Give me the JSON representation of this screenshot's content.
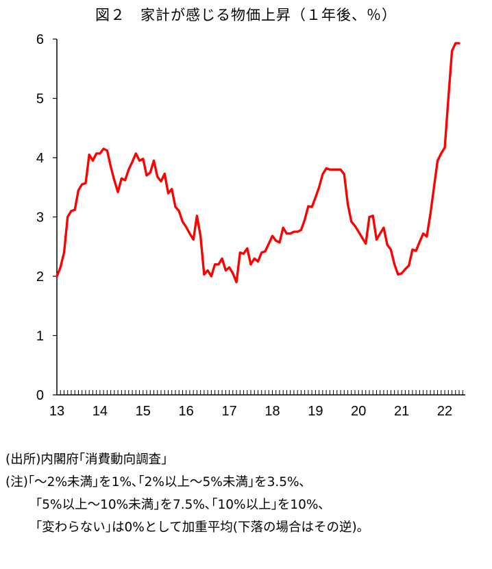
{
  "chart_data": {
    "type": "line",
    "title": "図２　家計が感じる物価上昇（１年後、％）",
    "xlabel": "",
    "ylabel": "",
    "ylim": [
      0,
      6
    ],
    "y_ticks": [
      "0",
      "1",
      "2",
      "3",
      "4",
      "5",
      "6"
    ],
    "x_tick_labels": [
      "13",
      "14",
      "15",
      "16",
      "17",
      "18",
      "19",
      "20",
      "21",
      "22"
    ],
    "x_tick_years": [
      2013,
      2014,
      2015,
      2016,
      2017,
      2018,
      2019,
      2020,
      2021,
      2022
    ],
    "x_range": [
      2013,
      2022.333
    ],
    "grid": false,
    "legend": "none",
    "series": [
      {
        "name": "家計が感じる物価上昇（１年後）",
        "color": "#ff0000",
        "x": [
          2013.0,
          2013.083,
          2013.167,
          2013.25,
          2013.333,
          2013.417,
          2013.5,
          2013.583,
          2013.667,
          2013.75,
          2013.833,
          2013.917,
          2014.0,
          2014.083,
          2014.167,
          2014.25,
          2014.333,
          2014.417,
          2014.5,
          2014.583,
          2014.667,
          2014.75,
          2014.833,
          2014.917,
          2015.0,
          2015.083,
          2015.167,
          2015.25,
          2015.333,
          2015.417,
          2015.5,
          2015.583,
          2015.667,
          2015.75,
          2015.833,
          2015.917,
          2016.0,
          2016.083,
          2016.167,
          2016.25,
          2016.333,
          2016.417,
          2016.5,
          2016.583,
          2016.667,
          2016.75,
          2016.833,
          2016.917,
          2017.0,
          2017.083,
          2017.167,
          2017.25,
          2017.333,
          2017.417,
          2017.5,
          2017.583,
          2017.667,
          2017.75,
          2017.833,
          2017.917,
          2018.0,
          2018.083,
          2018.167,
          2018.25,
          2018.333,
          2018.417,
          2018.5,
          2018.583,
          2018.667,
          2018.75,
          2018.833,
          2018.917,
          2019.0,
          2019.083,
          2019.167,
          2019.25,
          2019.333,
          2019.417,
          2019.5,
          2019.583,
          2019.667,
          2019.75,
          2019.833,
          2019.917,
          2020.0,
          2020.083,
          2020.167,
          2020.25,
          2020.333,
          2020.417,
          2020.5,
          2020.583,
          2020.667,
          2020.75,
          2020.833,
          2020.917,
          2021.0,
          2021.083,
          2021.167,
          2021.25,
          2021.333,
          2021.417,
          2021.5,
          2021.583,
          2021.667,
          2021.75,
          2021.833,
          2021.917,
          2022.0,
          2022.083,
          2022.167,
          2022.25,
          2022.333
        ],
        "values": [
          2.0,
          2.15,
          2.4,
          3.0,
          3.1,
          3.12,
          3.45,
          3.55,
          3.57,
          4.05,
          3.95,
          4.07,
          4.07,
          4.15,
          4.12,
          3.85,
          3.62,
          3.42,
          3.65,
          3.62,
          3.8,
          3.93,
          4.07,
          3.95,
          3.98,
          3.7,
          3.75,
          3.95,
          3.68,
          3.6,
          3.73,
          3.4,
          3.47,
          3.17,
          3.1,
          2.92,
          2.83,
          2.72,
          2.62,
          3.02,
          2.68,
          2.03,
          2.1,
          2.0,
          2.2,
          2.2,
          2.3,
          2.1,
          2.15,
          2.05,
          1.9,
          2.4,
          2.38,
          2.47,
          2.2,
          2.3,
          2.25,
          2.4,
          2.42,
          2.55,
          2.68,
          2.6,
          2.57,
          2.82,
          2.72,
          2.72,
          2.75,
          2.75,
          2.78,
          2.95,
          3.18,
          3.17,
          3.33,
          3.5,
          3.72,
          3.82,
          3.8,
          3.8,
          3.8,
          3.8,
          3.72,
          3.22,
          2.92,
          2.85,
          2.75,
          2.65,
          2.55,
          3.0,
          3.02,
          2.62,
          2.72,
          2.82,
          2.53,
          2.45,
          2.2,
          2.03,
          2.05,
          2.12,
          2.18,
          2.45,
          2.43,
          2.58,
          2.72,
          2.67,
          3.05,
          3.5,
          3.95,
          4.07,
          4.17,
          5.0,
          5.8,
          5.93,
          5.93
        ]
      }
    ]
  },
  "notes": {
    "source": "(出所)内閣府｢消費動向調査｣",
    "note_line1": "(注)｢～2%未満｣を1%､｢2%以上～5%未満｣を3.5%､",
    "note_line2": "｢5%以上～10%未満｣を7.5%､｢10%以上｣を10%､",
    "note_line3": "｢変わらない｣は0%として加重平均(下落の場合はその逆)｡"
  }
}
